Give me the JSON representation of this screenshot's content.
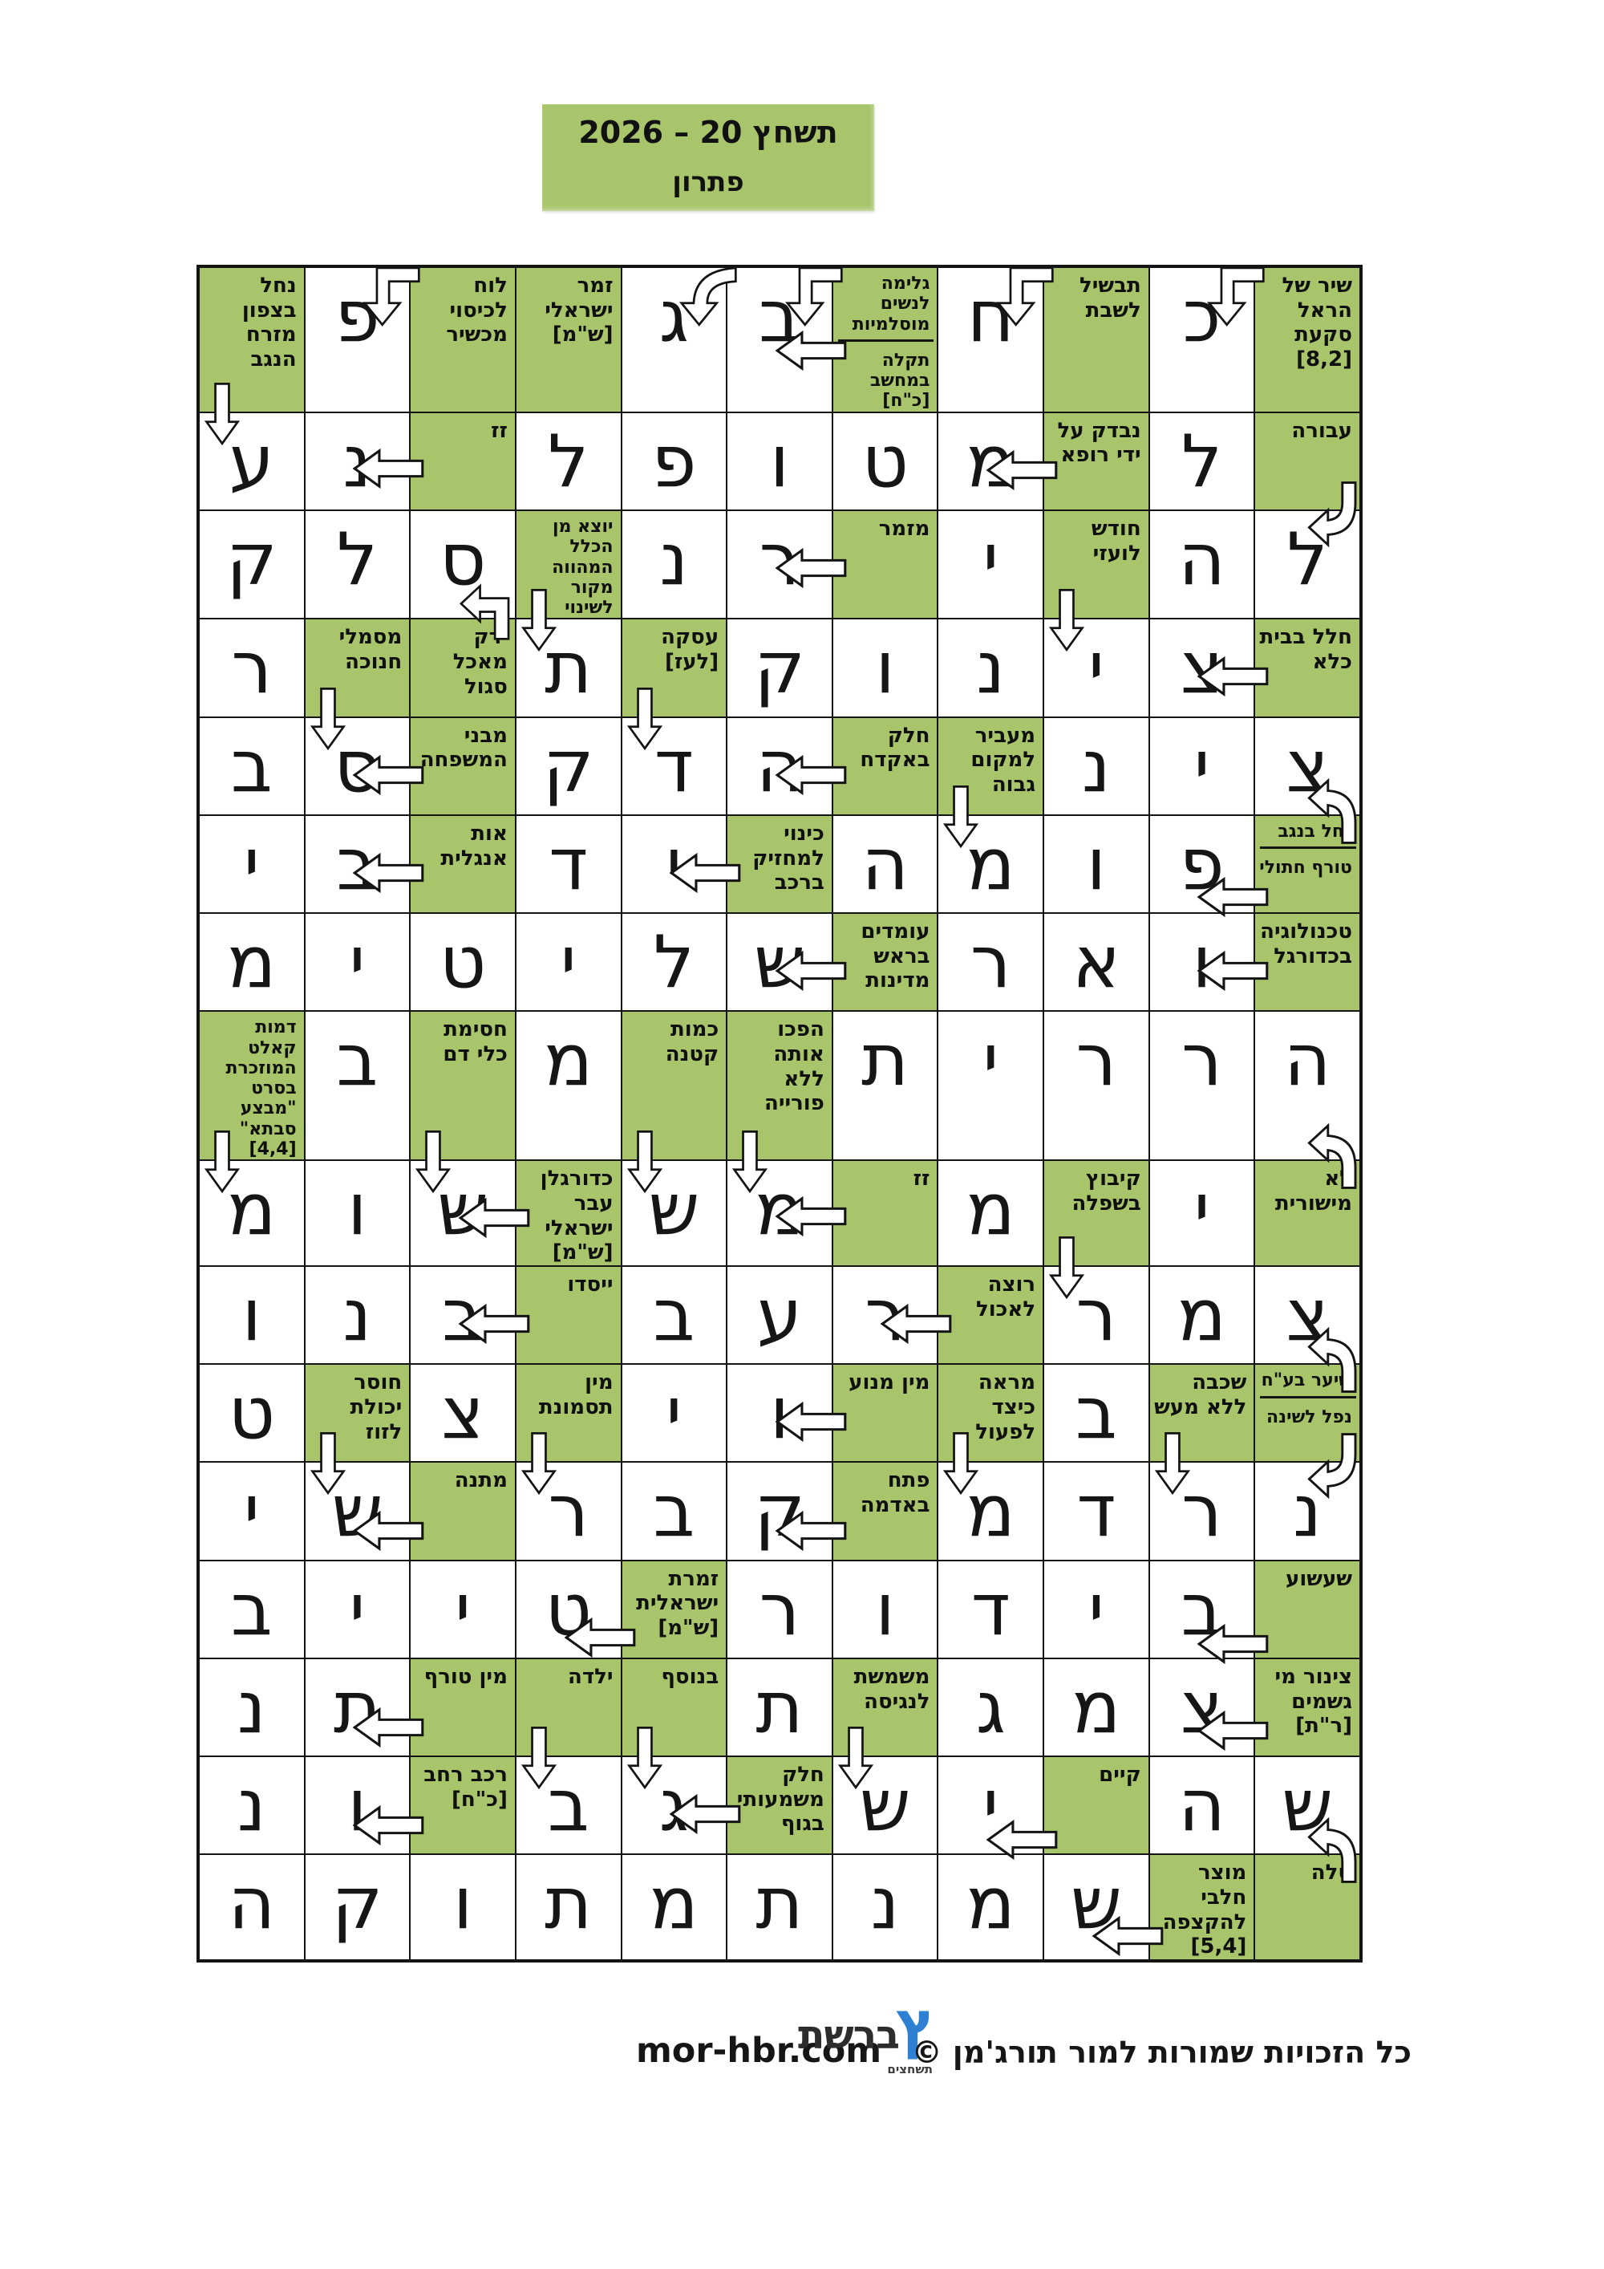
{
  "title": {
    "line1": "תשחץ 20 – 2026",
    "line2": "פתרון"
  },
  "colors": {
    "cell_green": "#a8c56b",
    "grid_line": "#141414",
    "page_bg": "#ffffff",
    "logo_blue": "#2e80d2"
  },
  "grid": {
    "rows": 16,
    "cols": 11,
    "cells": [
      {
        "t": "C",
        "v": "נחל בצפון מזרח הנגב",
        "a": [
          {
            "k": "dn"
          }
        ]
      },
      {
        "t": "L",
        "v": "פ",
        "a": [
          {
            "k": "bd"
          }
        ]
      },
      {
        "t": "C",
        "v": "לוח לכיסוי מכשיר"
      },
      {
        "t": "C",
        "v": "זמר ישראלי [ש\"מ]"
      },
      {
        "t": "L",
        "v": "ג",
        "a": [
          {
            "k": "cd"
          }
        ]
      },
      {
        "t": "L",
        "v": "ב",
        "a": [
          {
            "k": "bd"
          }
        ]
      },
      {
        "t": "C2",
        "v": "גלימה לנשים מוסלמיות",
        "v2": "תקלה במחשב [כ\"ח]",
        "a": [
          {
            "k": "lf",
            "y": 78
          }
        ]
      },
      {
        "t": "L",
        "v": "ח",
        "a": [
          {
            "k": "bd"
          }
        ]
      },
      {
        "t": "C",
        "v": "תבשיל לשבת"
      },
      {
        "t": "L",
        "v": "כ",
        "a": [
          {
            "k": "bd"
          }
        ]
      },
      {
        "t": "C",
        "v": "שיר של הראל סקעת [8,2]"
      },
      {
        "t": "L",
        "v": "ע"
      },
      {
        "t": "L",
        "v": "נ"
      },
      {
        "t": "C",
        "v": "זז",
        "a": [
          {
            "k": "lf",
            "y": 44
          }
        ]
      },
      {
        "t": "L",
        "v": "ל"
      },
      {
        "t": "L",
        "v": "פ"
      },
      {
        "t": "L",
        "v": "ו"
      },
      {
        "t": "L",
        "v": "ט"
      },
      {
        "t": "L",
        "v": "מ"
      },
      {
        "t": "C",
        "v": "נבדק על ידי רופא",
        "a": [
          {
            "k": "lf"
          }
        ]
      },
      {
        "t": "L",
        "v": "ל"
      },
      {
        "t": "C",
        "v": "עבורה"
      },
      {
        "t": "L",
        "v": "ק"
      },
      {
        "t": "L",
        "v": "ל"
      },
      {
        "t": "L",
        "v": "ס",
        "a": [
          {
            "k": "bu"
          }
        ]
      },
      {
        "t": "C",
        "v": "יוצא מן הכלל המהווה מקור לשינוי",
        "a": [
          {
            "k": "dn"
          }
        ]
      },
      {
        "t": "L",
        "v": "נ"
      },
      {
        "t": "L",
        "v": "ר"
      },
      {
        "t": "C",
        "v": "מזמר",
        "a": [
          {
            "k": "lf"
          }
        ]
      },
      {
        "t": "L",
        "v": "י"
      },
      {
        "t": "C",
        "v": "חודש לועזי",
        "a": [
          {
            "k": "dn"
          }
        ]
      },
      {
        "t": "L",
        "v": "ה"
      },
      {
        "t": "L",
        "v": "ל",
        "a": [
          {
            "k": "ct"
          }
        ]
      },
      {
        "t": "L",
        "v": "ר"
      },
      {
        "t": "C",
        "v": "מסמלי חנוכה",
        "a": [
          {
            "k": "dn"
          }
        ]
      },
      {
        "t": "C",
        "v": "ירק מאכל סגול"
      },
      {
        "t": "L",
        "v": "ת"
      },
      {
        "t": "C",
        "v": "עסקה [לעז]",
        "a": [
          {
            "k": "dn"
          }
        ]
      },
      {
        "t": "L",
        "v": "ק"
      },
      {
        "t": "L",
        "v": "ו"
      },
      {
        "t": "L",
        "v": "נ"
      },
      {
        "t": "L",
        "v": "י"
      },
      {
        "t": "L",
        "v": "צ"
      },
      {
        "t": "C",
        "v": "חלל בבית כלא",
        "a": [
          {
            "k": "lf"
          }
        ]
      },
      {
        "t": "L",
        "v": "ב"
      },
      {
        "t": "L",
        "v": "ס"
      },
      {
        "t": "C",
        "v": "מבני המשפחה",
        "a": [
          {
            "k": "lf"
          }
        ]
      },
      {
        "t": "L",
        "v": "ק"
      },
      {
        "t": "L",
        "v": "ד"
      },
      {
        "t": "L",
        "v": "ה"
      },
      {
        "t": "C",
        "v": "חלק באקדח",
        "a": [
          {
            "k": "lf"
          }
        ]
      },
      {
        "t": "C",
        "v": "מעביר למקום גבוה",
        "a": [
          {
            "k": "dn"
          }
        ]
      },
      {
        "t": "L",
        "v": "נ"
      },
      {
        "t": "L",
        "v": "י"
      },
      {
        "t": "L",
        "v": "צ",
        "a": [
          {
            "k": "cb"
          }
        ]
      },
      {
        "t": "L",
        "v": "י"
      },
      {
        "t": "L",
        "v": "ב"
      },
      {
        "t": "C",
        "v": "אות אנגלית",
        "a": [
          {
            "k": "lf"
          }
        ]
      },
      {
        "t": "L",
        "v": "ד"
      },
      {
        "t": "L",
        "v": "י"
      },
      {
        "t": "C",
        "v": "כינוי למחזיק ברכב",
        "a": [
          {
            "k": "lf"
          }
        ]
      },
      {
        "t": "L",
        "v": "ה"
      },
      {
        "t": "L",
        "v": "מ"
      },
      {
        "t": "L",
        "v": "ו"
      },
      {
        "t": "L",
        "v": "פ"
      },
      {
        "t": "C2",
        "v": "נחל בנגב",
        "v2": "טורף חתולי",
        "a": [
          {
            "k": "lf",
            "y": 76
          }
        ]
      },
      {
        "t": "L",
        "v": "מ"
      },
      {
        "t": "L",
        "v": "י"
      },
      {
        "t": "L",
        "v": "ט"
      },
      {
        "t": "L",
        "v": "י"
      },
      {
        "t": "L",
        "v": "ל"
      },
      {
        "t": "L",
        "v": "ש"
      },
      {
        "t": "C",
        "v": "עומדים בראש מדינות",
        "a": [
          {
            "k": "lf"
          }
        ]
      },
      {
        "t": "L",
        "v": "ר"
      },
      {
        "t": "L",
        "v": "א"
      },
      {
        "t": "L",
        "v": "ו"
      },
      {
        "t": "C",
        "v": "טכנולוגיה בכדורגל",
        "a": [
          {
            "k": "lf"
          }
        ]
      },
      {
        "t": "C",
        "v": "דמות קאלט המוזכרת בסרט \"מבצע סבתא\" [4,4]",
        "a": [
          {
            "k": "dn"
          }
        ]
      },
      {
        "t": "L",
        "v": "ב"
      },
      {
        "t": "C",
        "v": "חסימת כלי דם",
        "a": [
          {
            "k": "dn"
          }
        ]
      },
      {
        "t": "L",
        "v": "מ"
      },
      {
        "t": "C",
        "v": "כמות קטנה",
        "a": [
          {
            "k": "dn"
          }
        ]
      },
      {
        "t": "C",
        "v": "הפכו אותה ללא פורייה",
        "a": [
          {
            "k": "dn"
          }
        ]
      },
      {
        "t": "L",
        "v": "ת"
      },
      {
        "t": "L",
        "v": "י"
      },
      {
        "t": "L",
        "v": "ר"
      },
      {
        "t": "L",
        "v": "ר"
      },
      {
        "t": "L",
        "v": "ה",
        "a": [
          {
            "k": "cb"
          }
        ]
      },
      {
        "t": "L",
        "v": "מ"
      },
      {
        "t": "L",
        "v": "ו"
      },
      {
        "t": "L",
        "v": "ש"
      },
      {
        "t": "C",
        "v": "כדורגלן עבר ישראלי [ש\"מ]",
        "a": [
          {
            "k": "lf"
          }
        ]
      },
      {
        "t": "L",
        "v": "ש"
      },
      {
        "t": "L",
        "v": "מ"
      },
      {
        "t": "C",
        "v": "זז",
        "a": [
          {
            "k": "lf",
            "y": 44
          }
        ]
      },
      {
        "t": "L",
        "v": "מ"
      },
      {
        "t": "C",
        "v": "קיבוץ בשפלה",
        "a": [
          {
            "k": "dn"
          }
        ]
      },
      {
        "t": "L",
        "v": "י"
      },
      {
        "t": "C",
        "v": "לא מישורית"
      },
      {
        "t": "L",
        "v": "ו"
      },
      {
        "t": "L",
        "v": "נ"
      },
      {
        "t": "L",
        "v": "ב"
      },
      {
        "t": "C",
        "v": "ייסדו",
        "a": [
          {
            "k": "lf"
          }
        ]
      },
      {
        "t": "L",
        "v": "ב"
      },
      {
        "t": "L",
        "v": "ע"
      },
      {
        "t": "L",
        "v": "ר"
      },
      {
        "t": "C",
        "v": "רוצה לאכול",
        "a": [
          {
            "k": "lf"
          }
        ]
      },
      {
        "t": "L",
        "v": "ר"
      },
      {
        "t": "L",
        "v": "מ"
      },
      {
        "t": "L",
        "v": "צ",
        "a": [
          {
            "k": "cb"
          }
        ]
      },
      {
        "t": "L",
        "v": "ט"
      },
      {
        "t": "C",
        "v": "חוסר יכולת לזוז",
        "a": [
          {
            "k": "dn"
          }
        ]
      },
      {
        "t": "L",
        "v": "צ"
      },
      {
        "t": "C",
        "v": "מין תסמונת",
        "a": [
          {
            "k": "dn"
          }
        ]
      },
      {
        "t": "L",
        "v": "י"
      },
      {
        "t": "L",
        "v": "ו"
      },
      {
        "t": "C",
        "v": "מין מנוע",
        "a": [
          {
            "k": "lf"
          }
        ]
      },
      {
        "t": "C",
        "v": "מראה כיצד לפעול",
        "a": [
          {
            "k": "dn"
          }
        ]
      },
      {
        "t": "L",
        "v": "ב"
      },
      {
        "t": "C",
        "v": "שכבה ללא מעש",
        "a": [
          {
            "k": "dn"
          }
        ]
      },
      {
        "t": "C2",
        "v": "שיער בע\"ח",
        "v2": "נפל לשינה"
      },
      {
        "t": "L",
        "v": "י"
      },
      {
        "t": "L",
        "v": "ש"
      },
      {
        "t": "C",
        "v": "מתנה",
        "a": [
          {
            "k": "lf",
            "y": 60
          }
        ]
      },
      {
        "t": "L",
        "v": "ר"
      },
      {
        "t": "L",
        "v": "ב"
      },
      {
        "t": "L",
        "v": "ק"
      },
      {
        "t": "C",
        "v": "פתח באדמה",
        "a": [
          {
            "k": "lf",
            "y": 60
          }
        ]
      },
      {
        "t": "L",
        "v": "מ"
      },
      {
        "t": "L",
        "v": "ד"
      },
      {
        "t": "L",
        "v": "ר"
      },
      {
        "t": "L",
        "v": "נ",
        "a": [
          {
            "k": "ct"
          }
        ]
      },
      {
        "t": "L",
        "v": "ב"
      },
      {
        "t": "L",
        "v": "י"
      },
      {
        "t": "L",
        "v": "י"
      },
      {
        "t": "L",
        "v": "ט"
      },
      {
        "t": "C",
        "v": "זמרת ישראלית [ש\"מ]",
        "a": [
          {
            "k": "lf",
            "y": 70
          }
        ]
      },
      {
        "t": "L",
        "v": "ר"
      },
      {
        "t": "L",
        "v": "ו"
      },
      {
        "t": "L",
        "v": "ד"
      },
      {
        "t": "L",
        "v": "י"
      },
      {
        "t": "L",
        "v": "ב"
      },
      {
        "t": "C",
        "v": "שעשוע",
        "a": [
          {
            "k": "lf",
            "y": 78
          }
        ]
      },
      {
        "t": "L",
        "v": "נ"
      },
      {
        "t": "L",
        "v": "ת"
      },
      {
        "t": "C",
        "v": "מין טורף",
        "a": [
          {
            "k": "lf",
            "y": 60
          }
        ]
      },
      {
        "t": "C",
        "v": "ילדה",
        "a": [
          {
            "k": "dn"
          }
        ]
      },
      {
        "t": "C",
        "v": "בנוסף",
        "a": [
          {
            "k": "dn"
          }
        ]
      },
      {
        "t": "L",
        "v": "ת"
      },
      {
        "t": "C",
        "v": "משמשת לנגיסה",
        "a": [
          {
            "k": "dn"
          }
        ]
      },
      {
        "t": "L",
        "v": "ג"
      },
      {
        "t": "L",
        "v": "מ"
      },
      {
        "t": "L",
        "v": "צ"
      },
      {
        "t": "C",
        "v": "צינור מי גשמים [ר\"ת]",
        "a": [
          {
            "k": "lf",
            "y": 64
          }
        ]
      },
      {
        "t": "L",
        "v": "נ"
      },
      {
        "t": "L",
        "v": "ו"
      },
      {
        "t": "C",
        "v": "רכב רחב [כ\"ח]",
        "a": [
          {
            "k": "lf",
            "y": 60
          }
        ]
      },
      {
        "t": "L",
        "v": "ב"
      },
      {
        "t": "L",
        "v": "ג"
      },
      {
        "t": "C",
        "v": "חלק משמעותי בגוף",
        "a": [
          {
            "k": "lf"
          }
        ]
      },
      {
        "t": "L",
        "v": "ש"
      },
      {
        "t": "L",
        "v": "י"
      },
      {
        "t": "C",
        "v": "קיים",
        "a": [
          {
            "k": "lf",
            "y": 78
          }
        ]
      },
      {
        "t": "L",
        "v": "ה"
      },
      {
        "t": "L",
        "v": "ש",
        "a": [
          {
            "k": "cb"
          }
        ]
      },
      {
        "t": "L",
        "v": "ה"
      },
      {
        "t": "L",
        "v": "ק"
      },
      {
        "t": "L",
        "v": "ו"
      },
      {
        "t": "L",
        "v": "ת"
      },
      {
        "t": "L",
        "v": "מ"
      },
      {
        "t": "L",
        "v": "ת"
      },
      {
        "t": "L",
        "v": "נ"
      },
      {
        "t": "L",
        "v": "מ"
      },
      {
        "t": "L",
        "v": "ש"
      },
      {
        "t": "C",
        "v": "מוצר חלבי להקצפה [5,4]",
        "a": [
          {
            "k": "lf",
            "y": 76
          }
        ]
      },
      {
        "t": "C",
        "v": "טלה"
      }
    ]
  },
  "footer": {
    "site": "mor-hbr.com",
    "logo_main": "ברשת",
    "logo_mark": "ץ",
    "logo_sub": "תשחצים",
    "copyright": "כל הזכויות שמורות למור תורג'מן ©"
  }
}
